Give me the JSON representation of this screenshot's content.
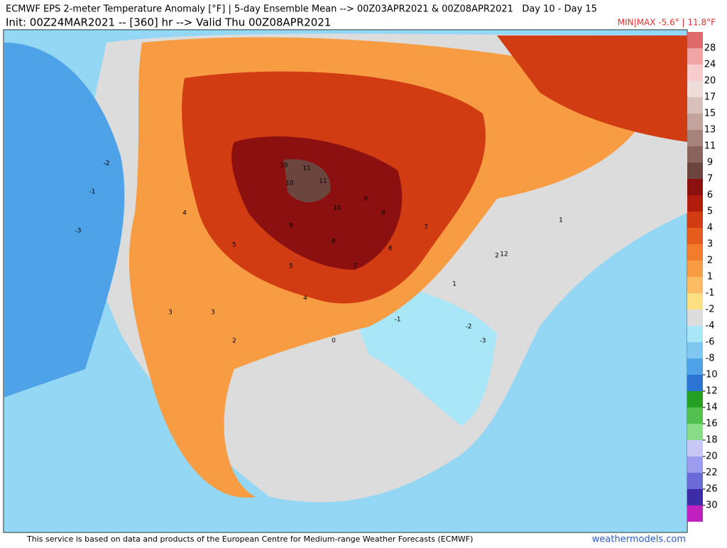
{
  "header": {
    "title": "ECMWF EPS 2-meter Temperature Anomaly [°F] | 5-day Ensemble Mean --> 00Z03APR2021 & 00Z08APR2021   Day 10 - Day 15",
    "subtitle": "Init: 00Z24MAR2021 -- [360] hr --> Valid Thu 00Z08APR2021",
    "minmax": "MIN|MAX -5.6° | 11.8°F"
  },
  "colorbar": {
    "levels": [
      28,
      24,
      20,
      17,
      15,
      13,
      11,
      9,
      7,
      6,
      5,
      4,
      3,
      2,
      1,
      -1,
      -2,
      -4,
      -6,
      -8,
      -10,
      -12,
      -14,
      -16,
      -18,
      -20,
      -22,
      -26,
      -30
    ],
    "colors": [
      "#e06a6a",
      "#f0a4a4",
      "#f6cccc",
      "#eedcd8",
      "#d8c0bb",
      "#c2a49d",
      "#a6847c",
      "#8a645c",
      "#6c463e",
      "#8c1010",
      "#b21c0c",
      "#d13c12",
      "#e65c1c",
      "#f27c2c",
      "#f89c44",
      "#fbbc62",
      "#fde082",
      "#dcdcdc",
      "#a8e6f8",
      "#80c8f0",
      "#4ea2e8",
      "#2a74d6",
      "#24a024",
      "#50c050",
      "#88dc88",
      "#c8c8f6",
      "#9c9cee",
      "#6a6ad8",
      "#3c2ca8",
      "#c020c0"
    ]
  },
  "map": {
    "labels": [
      "11",
      "11",
      "10",
      "10",
      "10",
      "9",
      "9",
      "8",
      "8",
      "7",
      "7",
      "6",
      "5",
      "5",
      "4",
      "4",
      "3",
      "3",
      "2",
      "2",
      "1",
      "1",
      "0",
      "-1",
      "-1",
      "-2",
      "-2",
      "-3",
      "-3",
      "12"
    ]
  },
  "footer": {
    "notice": "This service is based on data and products of the European Centre for Medium-range Weather Forecasts (ECMWF)",
    "site": "weathermodels.com"
  }
}
